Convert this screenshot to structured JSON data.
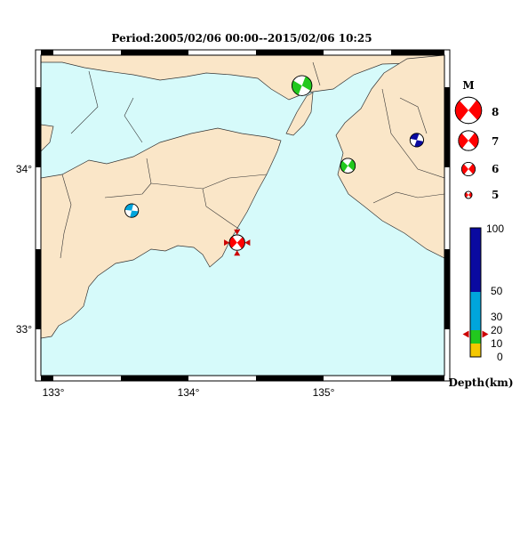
{
  "title": "Period:2005/02/06 00:00--2015/02/06 10:25",
  "axes": {
    "lon_labels": [
      "133°",
      "134°",
      "135°"
    ],
    "lat_labels": [
      "34°",
      "33°"
    ]
  },
  "legend": {
    "title": "M",
    "magnitudes": [
      "8",
      "7",
      "6",
      "5"
    ]
  },
  "colorbar": {
    "ticks": [
      "100",
      "50",
      "30",
      "20",
      "10",
      "0"
    ],
    "label": "Depth(km)",
    "marker_depth": 17
  },
  "colors": {
    "land": "#fae6c8",
    "sea": "#d6fafa",
    "compression": "#ff0000",
    "depth_0_10": "#f5c800",
    "depth_10_20": "#22c81e",
    "depth_20_50": "#00a5dc",
    "depth_50_100": "#0a0aa0"
  },
  "events": [
    {
      "name": "event-awaji",
      "lon": 134.84,
      "lat": 34.51,
      "mag": 7.0,
      "depth": 15,
      "color_key": "depth_10_20"
    },
    {
      "name": "event-wakayama",
      "lon": 135.18,
      "lat": 34.01,
      "mag": 6.2,
      "depth": 15,
      "color_key": "depth_10_20"
    },
    {
      "name": "event-nara",
      "lon": 135.69,
      "lat": 34.17,
      "mag": 6.0,
      "depth": 70,
      "color_key": "depth_50_100"
    },
    {
      "name": "event-kochi",
      "lon": 133.58,
      "lat": 33.73,
      "mag": 6.0,
      "depth": 25,
      "color_key": "depth_20_50"
    },
    {
      "name": "event-tokushima-latest",
      "lon": 134.36,
      "lat": 33.53,
      "mag": 6.3,
      "depth": 17,
      "color_key": "compression"
    }
  ]
}
